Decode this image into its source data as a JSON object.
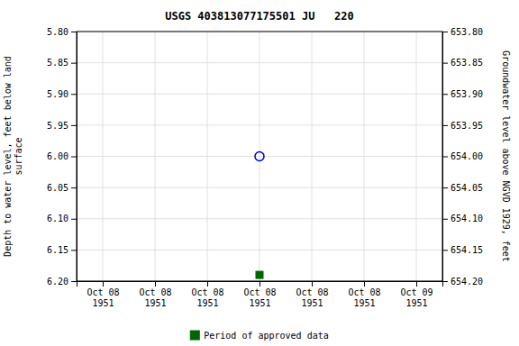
{
  "chart_data": {
    "type": "scatter",
    "title": "USGS 403813077175501 JU   220",
    "y_label": "Depth to water level, feet below land\nsurface",
    "y2_label": "Groundwater level above NGVD 1929, feet",
    "categories": [
      "Oct 08\n1951",
      "Oct 08\n1951",
      "Oct 08\n1951",
      "Oct 08\n1951",
      "Oct 08\n1951",
      "Oct 08\n1951",
      "Oct 09\n1951"
    ],
    "series": [
      {
        "color": "#0000cc",
        "marker": "circle-open",
        "values": [
          null,
          null,
          null,
          6.0,
          null,
          null,
          null
        ]
      },
      {
        "name": "Period of approved data",
        "color": "#006400",
        "marker": "square",
        "values": [
          null,
          null,
          null,
          6.19,
          null,
          null,
          null
        ]
      }
    ],
    "ylim": [
      6.2,
      5.8
    ],
    "yticks": [
      {
        "value": 5.8,
        "label": "5.80"
      },
      5.85,
      {
        "value": 5.9,
        "label": "5.90"
      },
      5.95,
      {
        "value": 6.0,
        "label": "6.00"
      },
      6.05,
      {
        "value": 6.1,
        "label": "6.10"
      },
      6.15,
      {
        "value": 6.2,
        "label": "6.20"
      }
    ],
    "y2lim": [
      654.2,
      653.8
    ],
    "y2ticks": [
      {
        "value": 654.2,
        "label": "654.20"
      },
      654.15,
      {
        "value": 654.1,
        "label": "654.10"
      },
      654.05,
      {
        "value": 654.0,
        "label": "654.00"
      },
      653.95,
      {
        "value": 653.9,
        "label": "653.90"
      },
      653.85,
      {
        "value": 653.8,
        "label": "653.80"
      }
    ],
    "grid": true,
    "legend": "bottom"
  }
}
